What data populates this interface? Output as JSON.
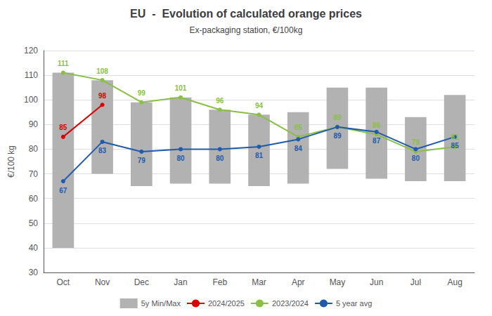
{
  "chart_data": {
    "type": "bar",
    "title": "EU  -  Evolution of calculated orange prices",
    "subtitle": "Ex-packaging station, €/100kg",
    "ylabel": "€/100 kg",
    "categories": [
      "Oct",
      "Nov",
      "Dec",
      "Jan",
      "Feb",
      "Mar",
      "Apr",
      "May",
      "Jun",
      "Jul",
      "Aug"
    ],
    "series": [
      {
        "name": "5y Min/Max",
        "type": "bar",
        "color": "#b2b2b2",
        "low": [
          40,
          70,
          65,
          66,
          66,
          65,
          66,
          72,
          68,
          67,
          67
        ],
        "high": [
          111,
          108,
          99,
          101,
          96,
          94,
          95,
          105,
          105,
          93,
          102
        ]
      },
      {
        "name": "2024/2025",
        "type": "line",
        "color": "#dd0000",
        "marker": "circle",
        "data_labels": true,
        "values": [
          85,
          98,
          null,
          null,
          null,
          null,
          null,
          null,
          null,
          null,
          null
        ]
      },
      {
        "name": "2023/2024",
        "type": "line",
        "color": "#8abf45",
        "marker": "circle",
        "data_labels": true,
        "values": [
          111,
          108,
          99,
          101,
          96,
          94,
          85,
          89,
          86,
          79,
          81
        ]
      },
      {
        "name": "5 year avg",
        "type": "line",
        "color": "#1f5bac",
        "marker": "circle",
        "data_labels": true,
        "values": [
          67,
          83,
          79,
          80,
          80,
          81,
          84,
          89,
          87,
          80,
          85
        ]
      }
    ],
    "ylim": [
      30,
      120
    ],
    "yticks": [
      30,
      40,
      50,
      60,
      70,
      80,
      90,
      100,
      110,
      120
    ],
    "grid": true,
    "legend": "bottom"
  }
}
